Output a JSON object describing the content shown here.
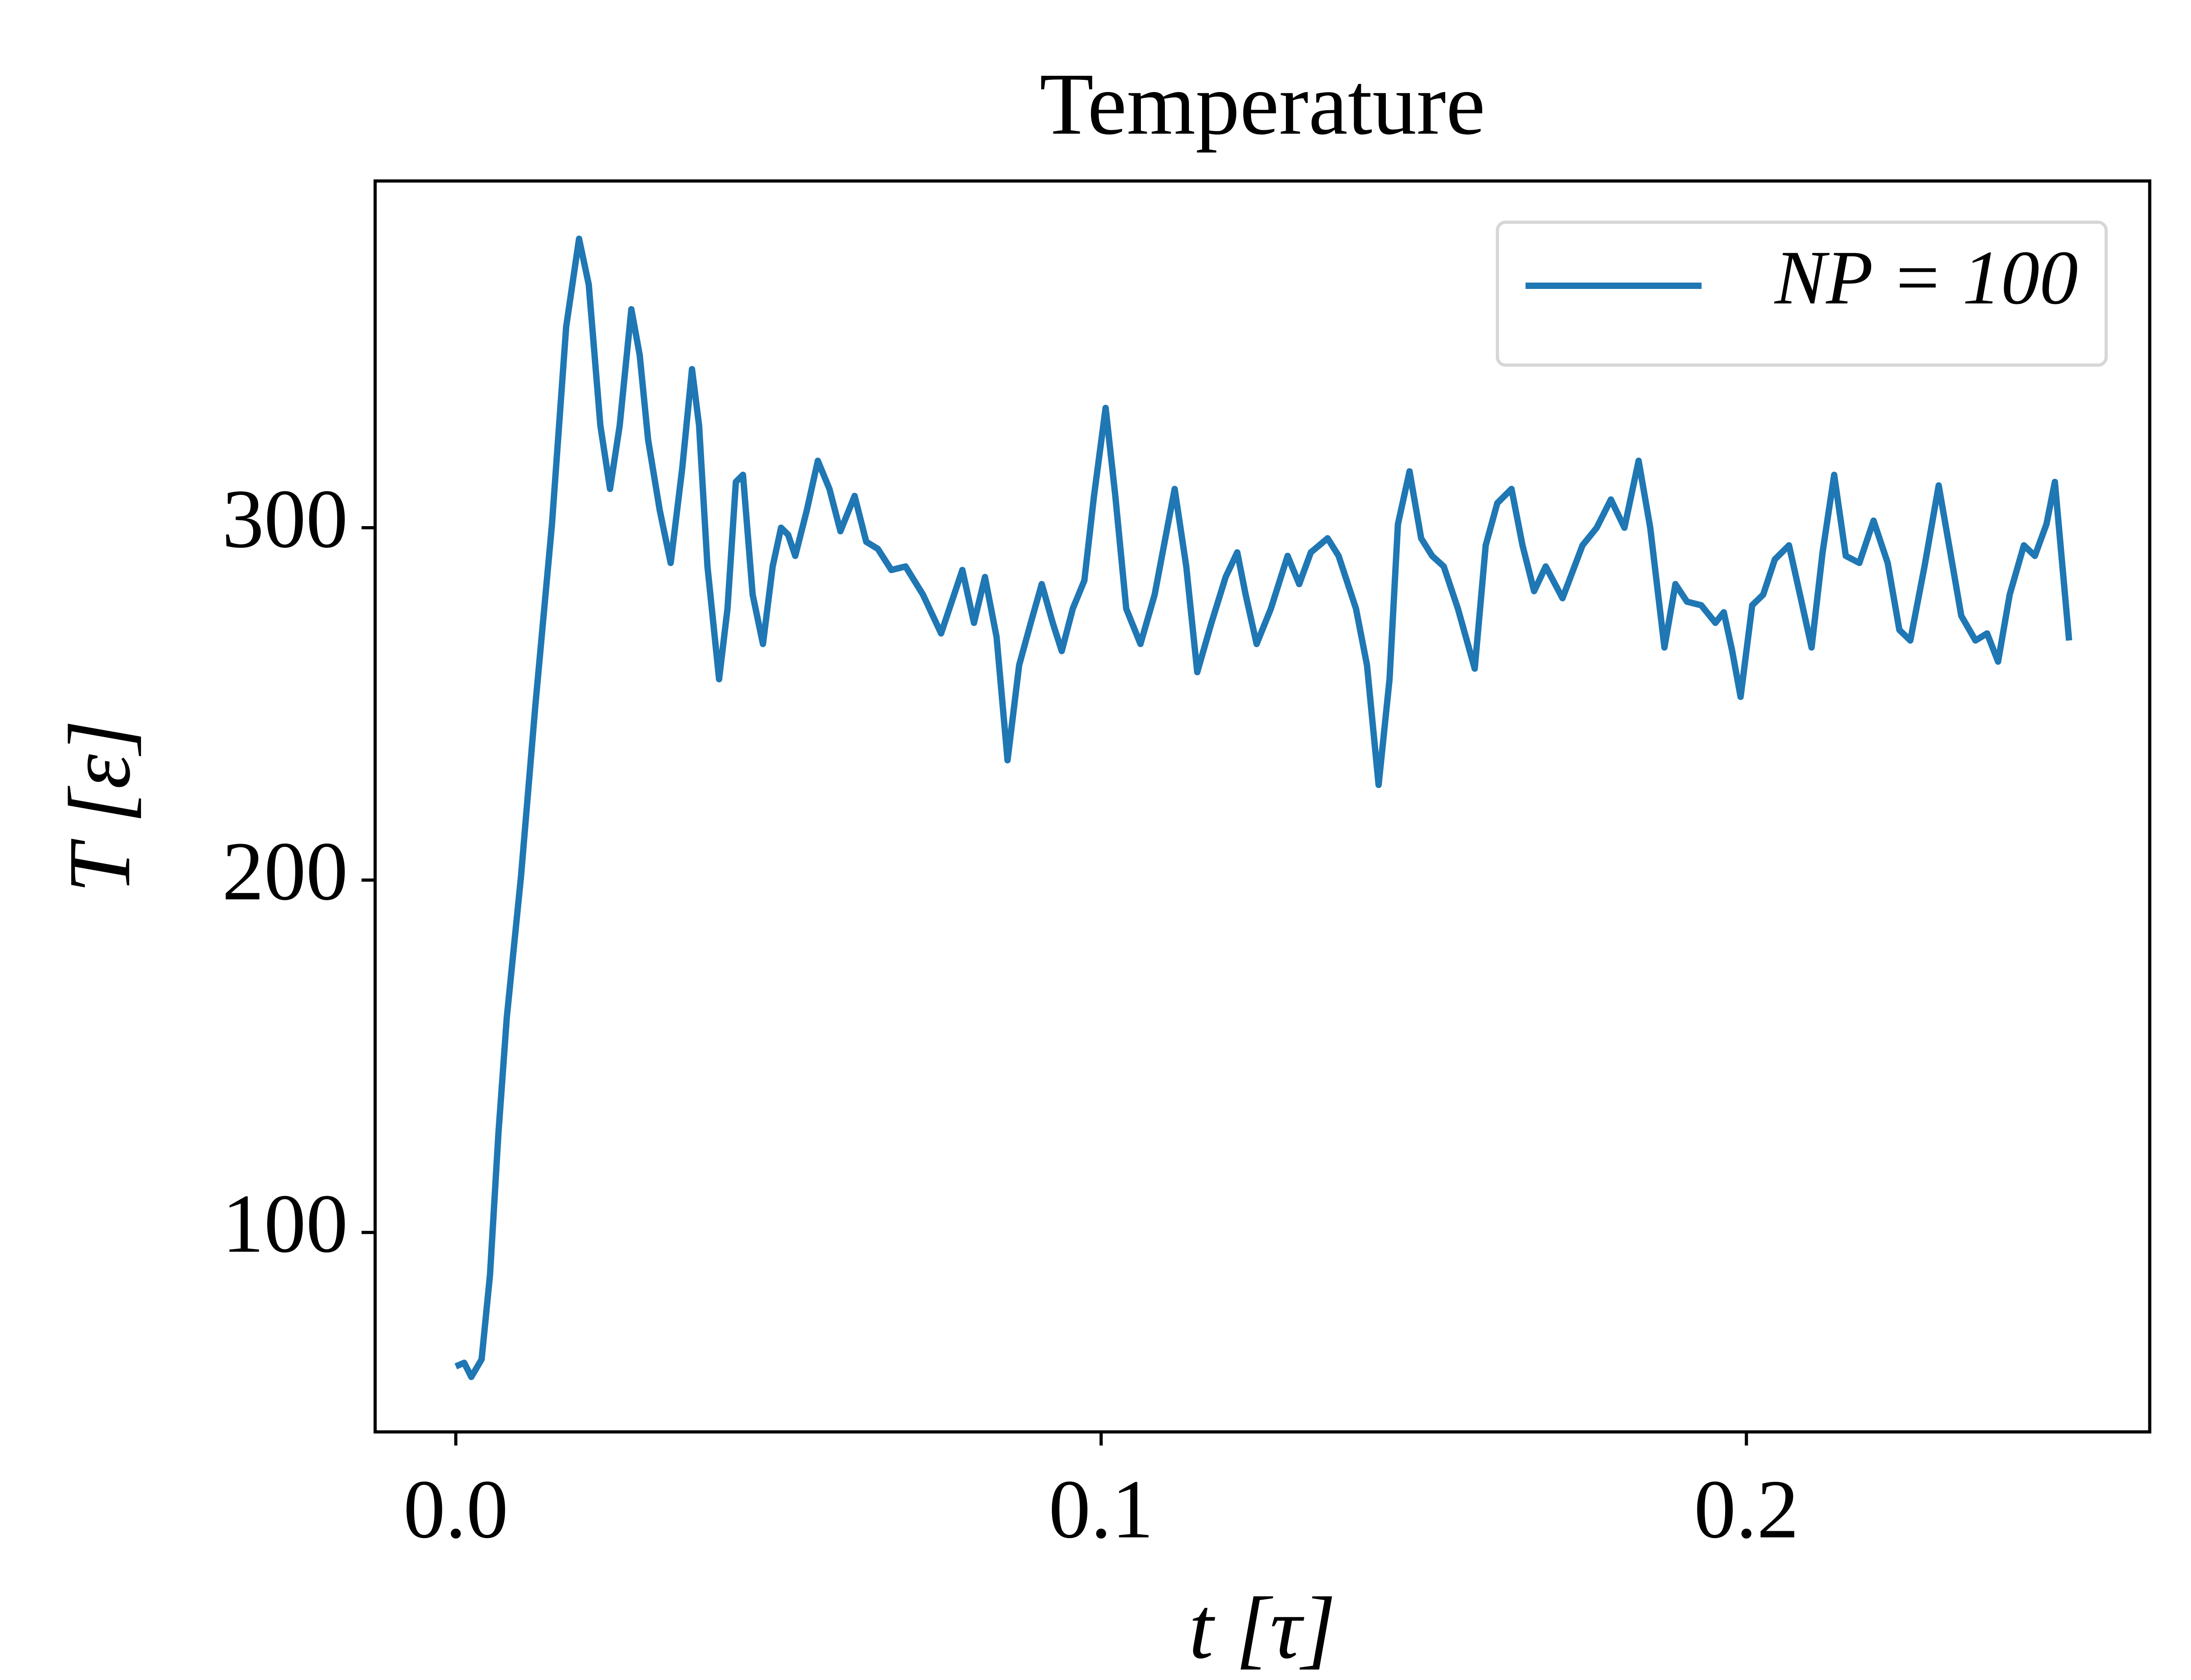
{
  "chart_data": {
    "type": "line",
    "title": "Temperature",
    "xlabel": "t [τ]",
    "ylabel": "T [ε]",
    "xlim": [
      -0.0125,
      0.2625
    ],
    "ylim": [
      43.4,
      398.4
    ],
    "xticks": [
      {
        "value": 0,
        "label": "0.0"
      },
      0.1,
      0.2
    ],
    "yticks": [
      100,
      200,
      300
    ],
    "legend": "upper right",
    "grid": false,
    "series": [
      {
        "name": "NP = 100",
        "color": "#1f77b4",
        "x": [
          0,
          0.0013,
          0.0024,
          0.004,
          0.0053,
          0.0066,
          0.0079,
          0.0101,
          0.0123,
          0.0149,
          0.0171,
          0.0191,
          0.0206,
          0.0224,
          0.0239,
          0.0254,
          0.0272,
          0.0285,
          0.0298,
          0.0316,
          0.0333,
          0.0351,
          0.0366,
          0.0377,
          0.039,
          0.0408,
          0.0421,
          0.0434,
          0.0445,
          0.046,
          0.0476,
          0.0491,
          0.0504,
          0.0515,
          0.0526,
          0.0544,
          0.0561,
          0.0579,
          0.0596,
          0.0618,
          0.0636,
          0.0654,
          0.0675,
          0.0697,
          0.0724,
          0.0752,
          0.0785,
          0.0803,
          0.082,
          0.0838,
          0.0855,
          0.0873,
          0.0891,
          0.0908,
          0.0925,
          0.0939,
          0.0956,
          0.0974,
          0.0989,
          0.1007,
          0.1022,
          0.1039,
          0.1061,
          0.1083,
          0.1114,
          0.1132,
          0.1149,
          0.1171,
          0.1193,
          0.1211,
          0.1224,
          0.1241,
          0.1263,
          0.1289,
          0.1307,
          0.1325,
          0.1351,
          0.1368,
          0.1395,
          0.1412,
          0.143,
          0.1447,
          0.146,
          0.1478,
          0.1496,
          0.1513,
          0.1531,
          0.1553,
          0.1579,
          0.1596,
          0.1614,
          0.1636,
          0.1653,
          0.1671,
          0.1689,
          0.1715,
          0.1746,
          0.1768,
          0.179,
          0.1811,
          0.1833,
          0.1851,
          0.1873,
          0.189,
          0.1908,
          0.193,
          0.1952,
          0.1965,
          0.1978,
          0.1991,
          0.2009,
          0.2026,
          0.2044,
          0.2066,
          0.2083,
          0.2101,
          0.2118,
          0.2136,
          0.2154,
          0.2175,
          0.2197,
          0.2219,
          0.2237,
          0.2254,
          0.2276,
          0.2298,
          0.2316,
          0.2333,
          0.2355,
          0.2373,
          0.239,
          0.2408,
          0.243,
          0.2447,
          0.2465,
          0.2478,
          0.25
        ],
        "values": [
          62,
          63,
          59,
          64,
          88,
          128,
          161,
          201,
          249,
          301,
          357,
          382,
          369,
          329,
          311,
          329,
          362,
          349,
          325,
          305,
          290,
          317,
          345,
          329,
          289,
          257,
          277,
          313,
          315,
          281,
          267,
          289,
          300,
          298,
          292,
          305,
          319,
          311,
          299,
          309,
          296,
          294,
          288,
          289,
          281,
          270,
          288,
          273,
          286,
          269,
          234,
          261,
          273,
          284,
          273,
          265,
          277,
          285,
          309,
          334,
          309,
          277,
          267,
          281,
          311,
          289,
          259,
          273,
          286,
          293,
          281,
          267,
          277,
          292,
          284,
          293,
          297,
          292,
          277,
          261,
          227,
          257,
          301,
          316,
          297,
          292,
          289,
          277,
          260,
          295,
          307,
          311,
          295,
          282,
          289,
          280,
          295,
          300,
          308,
          300,
          319,
          300,
          266,
          284,
          279,
          278,
          273,
          276,
          265,
          252,
          278,
          281,
          291,
          295,
          281,
          266,
          293,
          315,
          292,
          290,
          302,
          290,
          271,
          268,
          289,
          312,
          293,
          275,
          268,
          270,
          262,
          281,
          295,
          292,
          301,
          313,
          268
        ]
      }
    ]
  }
}
